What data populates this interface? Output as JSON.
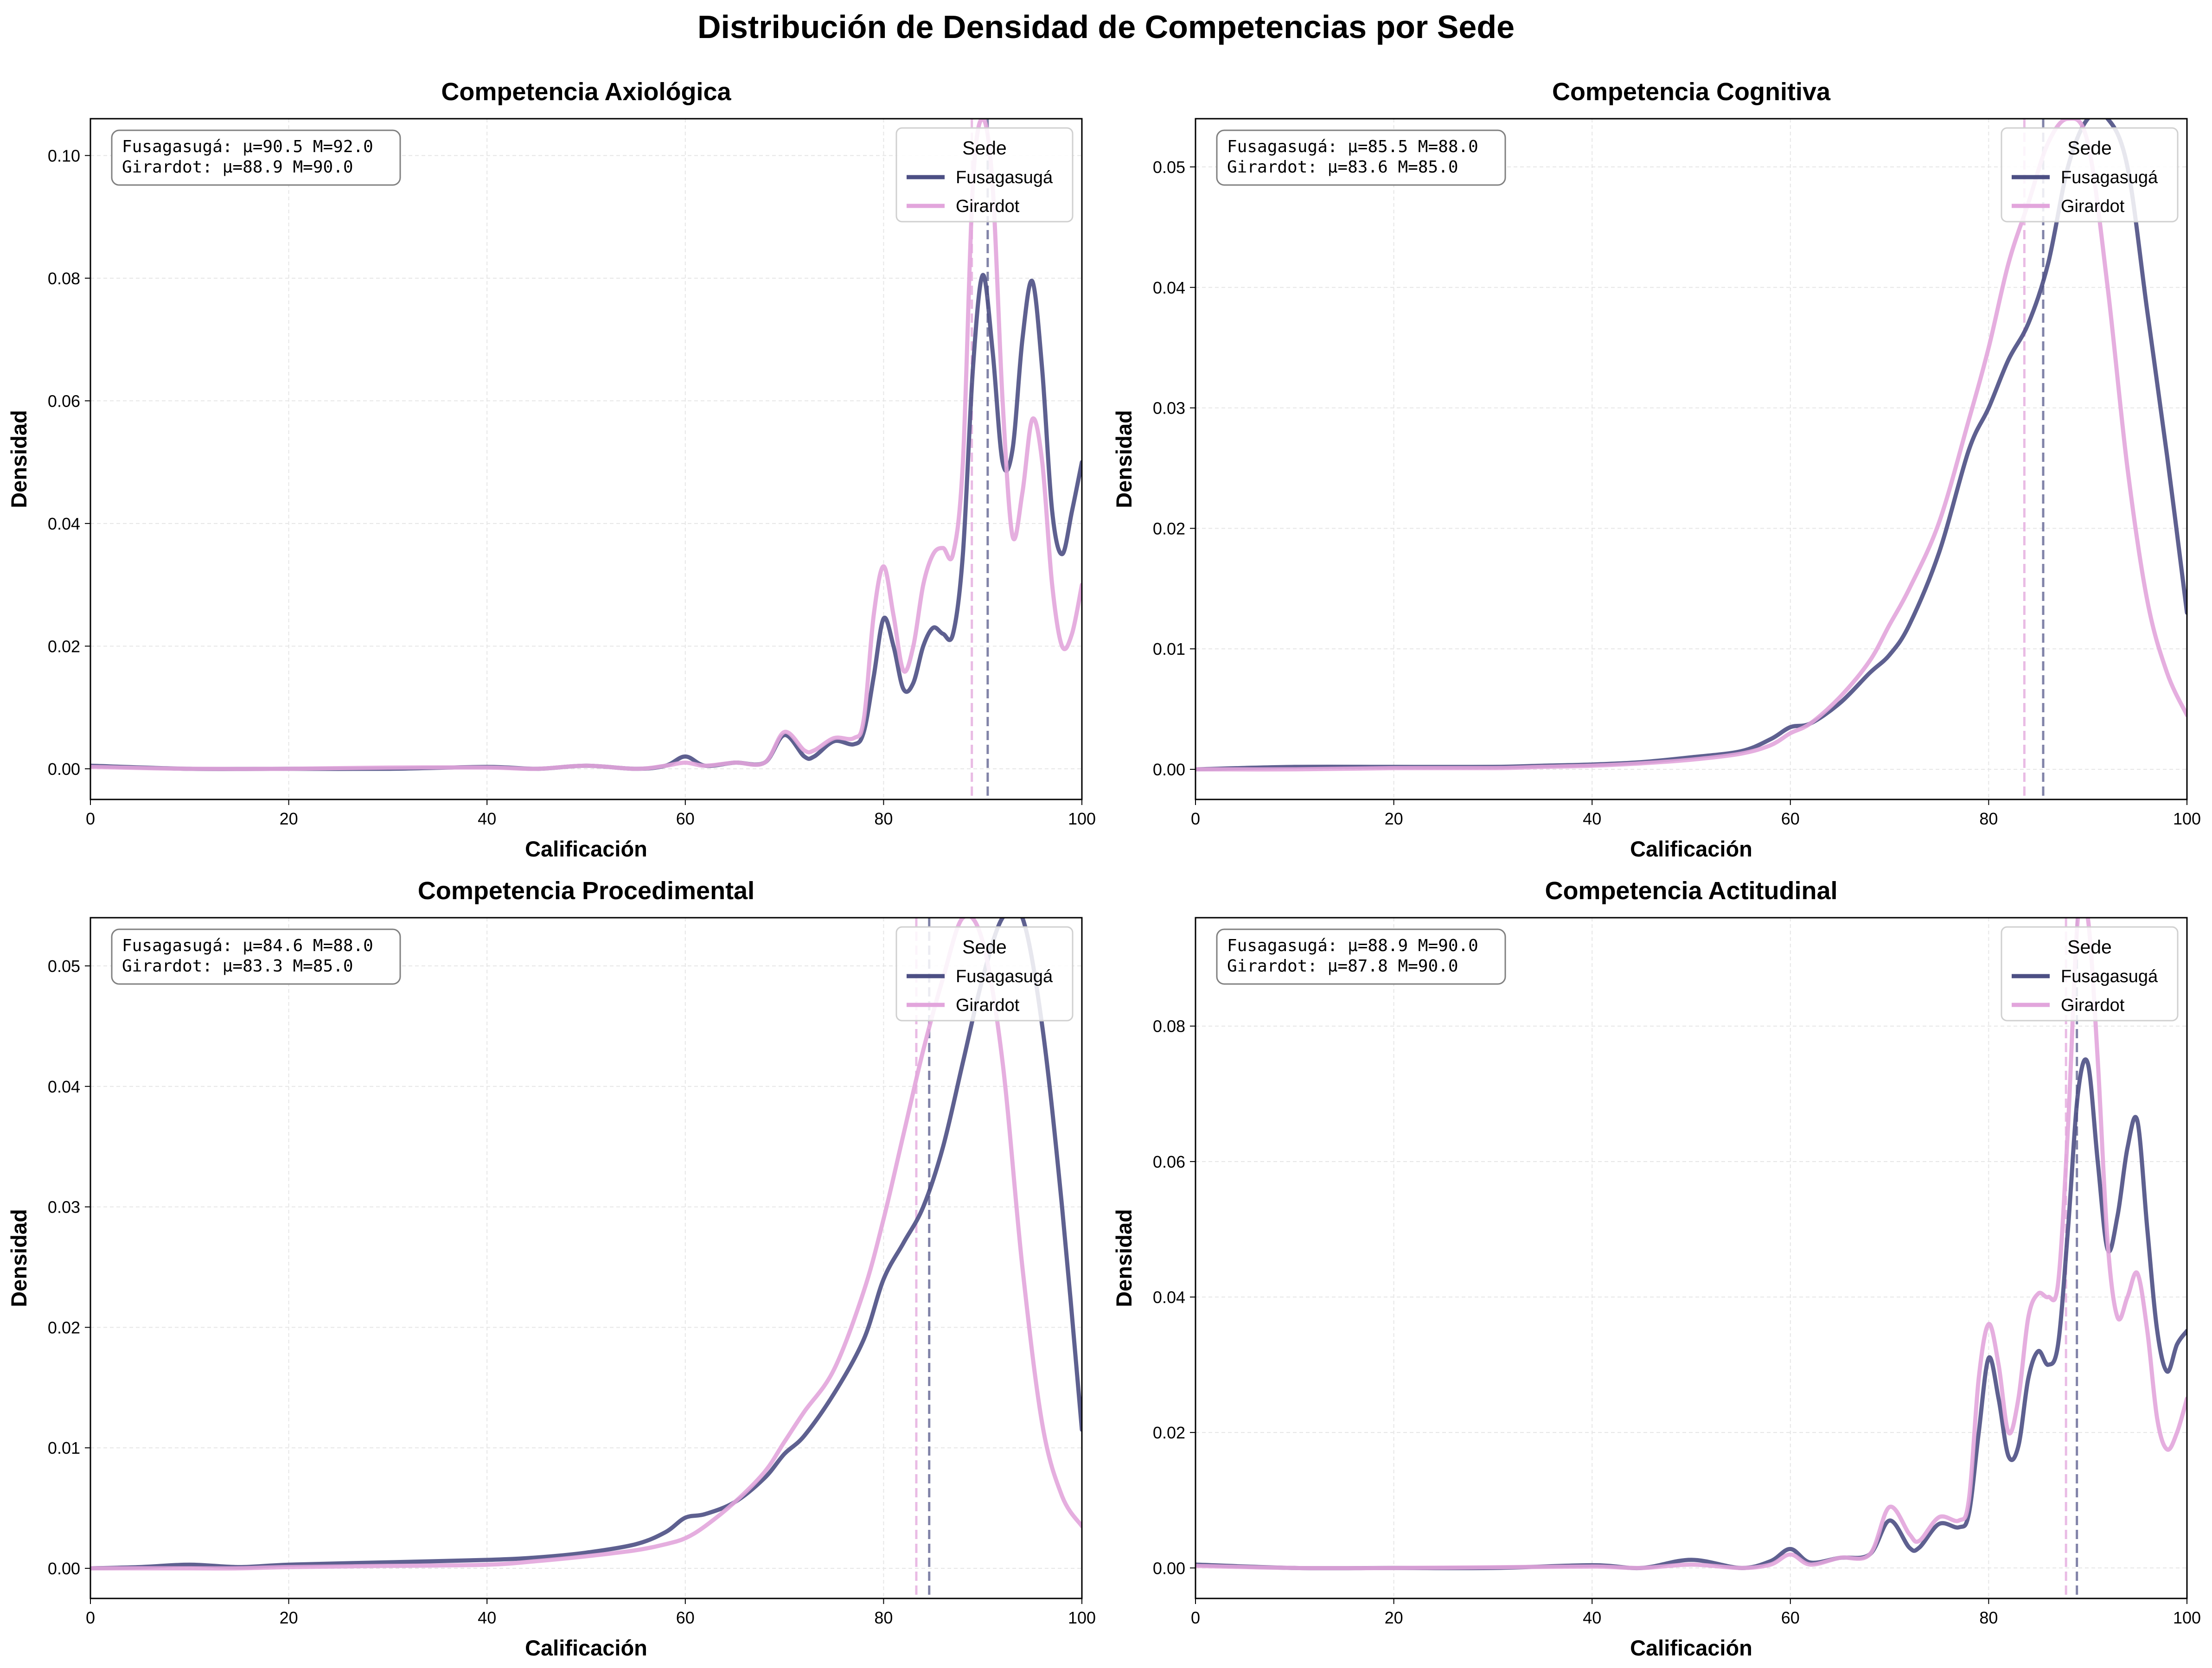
{
  "title": "Distribución de Densidad de Competencias por Sede",
  "colors": {
    "fusa": "#4c4f84",
    "gira": "#e2a5dc"
  },
  "legend": {
    "title": "Sede",
    "items": [
      "Fusagasugá",
      "Girardot"
    ],
    "position": "top-right"
  },
  "chart_data": [
    {
      "type": "line",
      "title": "Competencia Axiológica",
      "xlabel": "Calificación",
      "ylabel": "Densidad",
      "xlim": [
        0,
        100
      ],
      "ylim": [
        -0.005,
        0.106
      ],
      "yticks": [
        0.0,
        0.02,
        0.04,
        0.06,
        0.08,
        0.1
      ],
      "ytick_labels": [
        "0.00",
        "0.02",
        "0.04",
        "0.06",
        "0.08",
        "0.10"
      ],
      "grid": true,
      "stats": [
        "Fusagasugá: μ=90.5  M=92.0",
        "Girardot: μ=88.9  M=90.0"
      ],
      "mean_lines": {
        "Fusagasugá": 90.5,
        "Girardot": 88.9
      },
      "x": [
        0,
        10,
        20,
        30,
        40,
        45,
        50,
        55,
        58,
        60,
        62,
        65,
        68,
        70,
        72,
        73,
        75,
        77,
        78,
        79,
        80,
        81,
        82,
        83,
        84,
        85,
        86,
        87,
        88,
        89,
        90,
        91,
        92,
        93,
        94,
        95,
        96,
        97,
        98,
        99,
        100
      ],
      "series": [
        {
          "name": "Fusagasugá",
          "values": [
            0.0005,
            0.0,
            0.0,
            0.0,
            0.0003,
            0.0,
            0.0005,
            0.0,
            0.0005,
            0.002,
            0.0005,
            0.001,
            0.001,
            0.0055,
            0.002,
            0.002,
            0.0045,
            0.004,
            0.006,
            0.015,
            0.0245,
            0.02,
            0.013,
            0.014,
            0.02,
            0.023,
            0.022,
            0.022,
            0.035,
            0.065,
            0.0805,
            0.068,
            0.05,
            0.052,
            0.07,
            0.0795,
            0.065,
            0.042,
            0.035,
            0.042,
            0.05
          ]
        },
        {
          "name": "Girardot",
          "values": [
            0.0003,
            0.0,
            0.0,
            0.0002,
            0.0002,
            0.0,
            0.0005,
            0.0,
            0.0005,
            0.001,
            0.0005,
            0.001,
            0.001,
            0.006,
            0.003,
            0.003,
            0.005,
            0.005,
            0.008,
            0.025,
            0.033,
            0.025,
            0.016,
            0.02,
            0.03,
            0.035,
            0.036,
            0.035,
            0.05,
            0.095,
            0.106,
            0.095,
            0.06,
            0.038,
            0.045,
            0.057,
            0.05,
            0.03,
            0.02,
            0.022,
            0.03
          ]
        }
      ]
    },
    {
      "type": "line",
      "title": "Competencia Cognitiva",
      "xlabel": "Calificación",
      "ylabel": "Densidad",
      "xlim": [
        0,
        100
      ],
      "ylim": [
        -0.0025,
        0.054
      ],
      "yticks": [
        0.0,
        0.01,
        0.02,
        0.03,
        0.04,
        0.05
      ],
      "ytick_labels": [
        "0.00",
        "0.01",
        "0.02",
        "0.03",
        "0.04",
        "0.05"
      ],
      "grid": true,
      "stats": [
        "Fusagasugá: μ=85.5  M=88.0",
        "Girardot: μ=83.6  M=85.0"
      ],
      "mean_lines": {
        "Fusagasugá": 85.5,
        "Girardot": 83.6
      },
      "x": [
        0,
        10,
        20,
        30,
        35,
        40,
        45,
        50,
        55,
        58,
        60,
        62,
        65,
        68,
        70,
        72,
        75,
        78,
        80,
        82,
        84,
        86,
        88,
        90,
        92,
        94,
        96,
        98,
        100
      ],
      "series": [
        {
          "name": "Fusagasugá",
          "values": [
            0.0,
            0.0002,
            0.0002,
            0.0002,
            0.0003,
            0.0004,
            0.0006,
            0.001,
            0.0015,
            0.0025,
            0.0035,
            0.0038,
            0.0055,
            0.008,
            0.0095,
            0.012,
            0.018,
            0.0265,
            0.03,
            0.034,
            0.037,
            0.042,
            0.05,
            0.054,
            0.054,
            0.05,
            0.038,
            0.026,
            0.013
          ]
        },
        {
          "name": "Girardot",
          "values": [
            0.0,
            0.0,
            0.0001,
            0.0001,
            0.0002,
            0.0003,
            0.0005,
            0.0008,
            0.0013,
            0.002,
            0.003,
            0.0038,
            0.006,
            0.009,
            0.012,
            0.015,
            0.0205,
            0.029,
            0.035,
            0.042,
            0.047,
            0.052,
            0.054,
            0.052,
            0.04,
            0.025,
            0.014,
            0.008,
            0.0045
          ]
        }
      ]
    },
    {
      "type": "line",
      "title": "Competencia Procedimental",
      "xlabel": "Calificación",
      "ylabel": "Densidad",
      "xlim": [
        0,
        100
      ],
      "ylim": [
        -0.0025,
        0.054
      ],
      "yticks": [
        0.0,
        0.01,
        0.02,
        0.03,
        0.04,
        0.05
      ],
      "ytick_labels": [
        "0.00",
        "0.01",
        "0.02",
        "0.03",
        "0.04",
        "0.05"
      ],
      "grid": true,
      "stats": [
        "Fusagasugá: μ=84.6  M=88.0",
        "Girardot: μ=83.3  M=85.0"
      ],
      "mean_lines": {
        "Fusagasugá": 84.6,
        "Girardot": 83.3
      },
      "x": [
        0,
        5,
        10,
        15,
        20,
        30,
        40,
        45,
        50,
        55,
        58,
        60,
        62,
        65,
        68,
        70,
        72,
        75,
        78,
        80,
        82,
        84,
        86,
        88,
        90,
        92,
        94,
        96,
        98,
        100
      ],
      "series": [
        {
          "name": "Fusagasugá",
          "values": [
            0.0,
            0.0001,
            0.0003,
            0.0001,
            0.0003,
            0.0005,
            0.0007,
            0.0009,
            0.0013,
            0.002,
            0.003,
            0.0042,
            0.0045,
            0.0055,
            0.0075,
            0.0095,
            0.011,
            0.0145,
            0.019,
            0.024,
            0.027,
            0.03,
            0.035,
            0.042,
            0.049,
            0.054,
            0.054,
            0.045,
            0.03,
            0.0115
          ]
        },
        {
          "name": "Girardot",
          "values": [
            0.0,
            0.0,
            0.0,
            0.0,
            0.0001,
            0.0002,
            0.0003,
            0.0006,
            0.001,
            0.0015,
            0.002,
            0.0025,
            0.0035,
            0.0055,
            0.008,
            0.0105,
            0.013,
            0.0165,
            0.023,
            0.029,
            0.036,
            0.043,
            0.049,
            0.054,
            0.052,
            0.042,
            0.025,
            0.012,
            0.006,
            0.0035
          ]
        }
      ]
    },
    {
      "type": "line",
      "title": "Competencia Actitudinal",
      "xlabel": "Calificación",
      "ylabel": "Densidad",
      "xlim": [
        0,
        100
      ],
      "ylim": [
        -0.0045,
        0.096
      ],
      "yticks": [
        0.0,
        0.02,
        0.04,
        0.06,
        0.08
      ],
      "ytick_labels": [
        "0.00",
        "0.02",
        "0.04",
        "0.06",
        "0.08"
      ],
      "grid": true,
      "stats": [
        "Fusagasugá: μ=88.9  M=90.0",
        "Girardot: μ=87.8  M=90.0"
      ],
      "mean_lines": {
        "Fusagasugá": 88.9,
        "Girardot": 87.8
      },
      "x": [
        0,
        10,
        20,
        30,
        40,
        45,
        50,
        55,
        58,
        60,
        62,
        65,
        68,
        70,
        72,
        73,
        75,
        77,
        78,
        79,
        80,
        81,
        82,
        83,
        84,
        85,
        86,
        87,
        88,
        89,
        90,
        91,
        92,
        93,
        94,
        95,
        96,
        97,
        98,
        99,
        100
      ],
      "series": [
        {
          "name": "Fusagasugá",
          "values": [
            0.0005,
            0.0,
            0.0,
            0.0,
            0.0004,
            0.0,
            0.0012,
            0.0,
            0.001,
            0.0028,
            0.0008,
            0.0015,
            0.002,
            0.007,
            0.003,
            0.003,
            0.0065,
            0.006,
            0.008,
            0.02,
            0.031,
            0.025,
            0.0165,
            0.018,
            0.028,
            0.032,
            0.03,
            0.033,
            0.05,
            0.07,
            0.0745,
            0.06,
            0.047,
            0.052,
            0.062,
            0.066,
            0.05,
            0.035,
            0.029,
            0.033,
            0.035
          ]
        },
        {
          "name": "Girardot",
          "values": [
            0.0003,
            0.0,
            0.0,
            0.0001,
            0.0002,
            0.0,
            0.0005,
            0.0,
            0.0005,
            0.002,
            0.0005,
            0.0015,
            0.002,
            0.009,
            0.005,
            0.004,
            0.0075,
            0.007,
            0.01,
            0.028,
            0.036,
            0.03,
            0.02,
            0.025,
            0.037,
            0.0405,
            0.04,
            0.042,
            0.065,
            0.096,
            0.096,
            0.075,
            0.048,
            0.037,
            0.04,
            0.0435,
            0.035,
            0.022,
            0.0175,
            0.02,
            0.025
          ]
        }
      ]
    }
  ]
}
